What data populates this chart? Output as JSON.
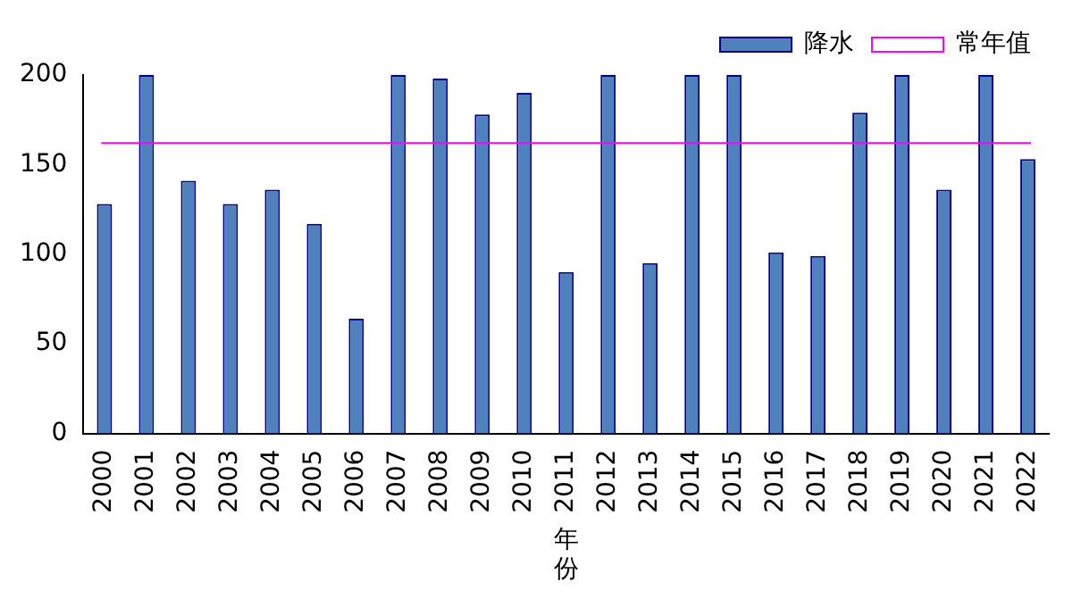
{
  "chart_data": {
    "type": "bar",
    "xlabel": "年份",
    "categories": [
      "2000",
      "2001",
      "2002",
      "2003",
      "2004",
      "2005",
      "2006",
      "2007",
      "2008",
      "2009",
      "2010",
      "2011",
      "2012",
      "2013",
      "2014",
      "2015",
      "2016",
      "2017",
      "2018",
      "2019",
      "2020",
      "2021",
      "2022"
    ],
    "series": [
      {
        "name": "降水",
        "color": "#4f81bd",
        "values": [
          128,
          200,
          141,
          128,
          136,
          117,
          64,
          200,
          198,
          178,
          190,
          90,
          200,
          95,
          200,
          200,
          101,
          99,
          179,
          200,
          136,
          200,
          153
        ]
      }
    ],
    "ylim": [
      0,
      200
    ],
    "yticks": [
      0,
      50,
      100,
      150,
      200
    ],
    "grid": false,
    "legend": "top",
    "ref_lines": [
      {
        "axis": "y",
        "value": 162,
        "label": "常年值",
        "color": "#ff00ff"
      }
    ]
  }
}
